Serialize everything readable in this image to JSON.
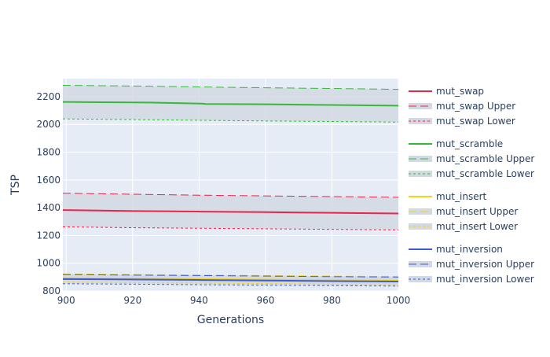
{
  "chart_data": {
    "type": "line",
    "title": "",
    "xlabel": "Generations",
    "ylabel": "TSP",
    "xlim": [
      899,
      1000
    ],
    "ylim": [
      800,
      2330
    ],
    "x_ticks": [
      900,
      920,
      940,
      960,
      980,
      1000
    ],
    "y_ticks": [
      800,
      1000,
      1200,
      1400,
      1600,
      1800,
      2000,
      2200
    ],
    "grid": true,
    "legend_placement": "right",
    "colors": {
      "plot_bg": "#e5ecf6",
      "band": "#d3d9e3",
      "grid": "#ffffff",
      "text": "#2a3f5f"
    },
    "series": [
      {
        "name": "mut_swap",
        "style": "solid",
        "color": "#e8254a",
        "x": [
          899,
          920,
          940,
          960,
          980,
          1000
        ],
        "values": [
          1383,
          1376,
          1372,
          1368,
          1363,
          1358
        ]
      },
      {
        "name": "mut_swap Upper",
        "style": "longdash",
        "color": "#e8254a",
        "x": [
          899,
          920,
          940,
          960,
          980,
          1000
        ],
        "values": [
          1504,
          1497,
          1490,
          1485,
          1480,
          1475
        ]
      },
      {
        "name": "mut_swap Lower",
        "style": "dot",
        "color": "#e8254a",
        "x": [
          899,
          920,
          940,
          960,
          980,
          1000
        ],
        "values": [
          1262,
          1256,
          1252,
          1248,
          1244,
          1240
        ]
      },
      {
        "name": "mut_scramble",
        "style": "solid",
        "color": "#37b937",
        "x": [
          899,
          925,
          941,
          942,
          960,
          980,
          1000
        ],
        "values": [
          2162,
          2158,
          2150,
          2147,
          2145,
          2140,
          2135
        ]
      },
      {
        "name": "mut_scramble Upper",
        "style": "longdash",
        "color": "#37b937",
        "x": [
          899,
          920,
          940,
          960,
          980,
          1000
        ],
        "values": [
          2282,
          2277,
          2270,
          2264,
          2259,
          2253
        ]
      },
      {
        "name": "mut_scramble Lower",
        "style": "dot",
        "color": "#37b937",
        "x": [
          899,
          920,
          940,
          960,
          980,
          1000
        ],
        "values": [
          2040,
          2035,
          2030,
          2025,
          2021,
          2017
        ]
      },
      {
        "name": "mut_insert",
        "style": "solid",
        "color": "#f2d41c",
        "x": [
          899,
          920,
          940,
          960,
          980,
          1000
        ],
        "values": [
          893,
          889,
          886,
          882,
          878,
          875
        ]
      },
      {
        "name": "mut_insert Upper",
        "style": "longdash",
        "color": "#f2d41c",
        "x": [
          899,
          920,
          940,
          960,
          980,
          1000
        ],
        "values": [
          922,
          918,
          915,
          911,
          907,
          904
        ]
      },
      {
        "name": "mut_insert Lower",
        "style": "dot",
        "color": "#f2d41c",
        "x": [
          899,
          920,
          940,
          960,
          980,
          1000
        ],
        "values": [
          864,
          860,
          857,
          853,
          849,
          846
        ]
      },
      {
        "name": "mut_inversion",
        "style": "solid",
        "color": "#3d5bd9",
        "x": [
          899,
          920,
          940,
          960,
          980,
          1000
        ],
        "values": [
          886,
          883,
          879,
          875,
          871,
          868
        ]
      },
      {
        "name": "mut_inversion Upper",
        "style": "longdash",
        "color": "#3d5bd9",
        "x": [
          899,
          920,
          940,
          960,
          980,
          1000
        ],
        "values": [
          918,
          914,
          911,
          907,
          903,
          900
        ]
      },
      {
        "name": "mut_inversion Lower",
        "style": "dot",
        "color": "#3d5bd9",
        "x": [
          899,
          920,
          940,
          960,
          980,
          1000
        ],
        "values": [
          852,
          849,
          845,
          842,
          838,
          835
        ]
      }
    ],
    "bands": [
      {
        "upper": "mut_scramble Upper",
        "lower": "mut_scramble Lower"
      },
      {
        "upper": "mut_swap Upper",
        "lower": "mut_swap Lower"
      },
      {
        "upper": "mut_insert Upper",
        "lower": "mut_insert Lower"
      },
      {
        "upper": "mut_inversion Upper",
        "lower": "mut_inversion Lower"
      }
    ],
    "legend_groups": [
      [
        "mut_swap",
        "mut_swap Upper",
        "mut_swap Lower"
      ],
      [
        "mut_scramble",
        "mut_scramble Upper",
        "mut_scramble Lower"
      ],
      [
        "mut_insert",
        "mut_insert Upper",
        "mut_insert Lower"
      ],
      [
        "mut_inversion",
        "mut_inversion Upper",
        "mut_inversion Lower"
      ]
    ]
  }
}
